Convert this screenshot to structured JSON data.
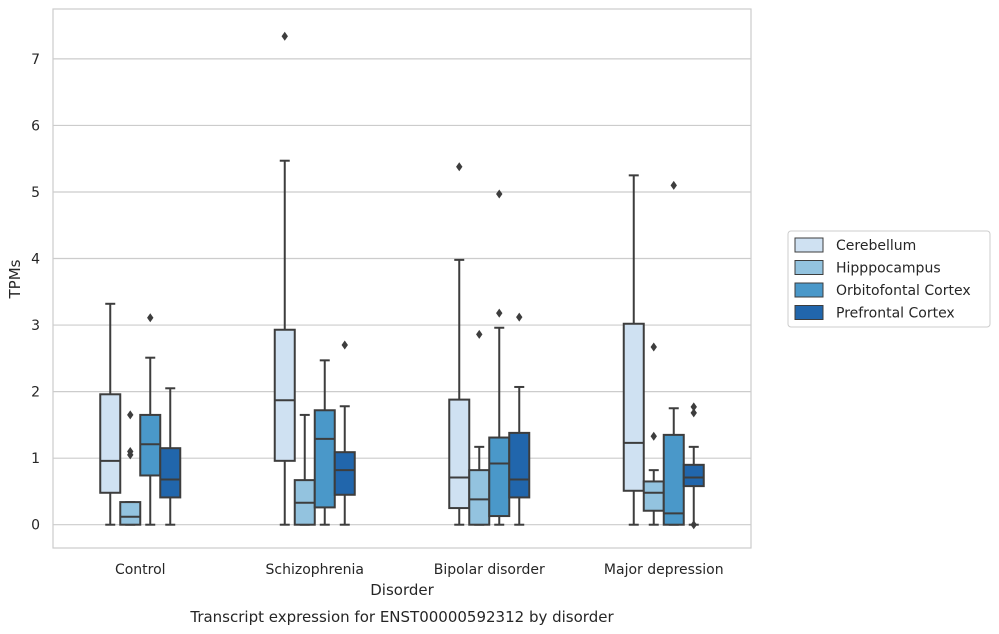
{
  "chart_data": {
    "type": "box",
    "title": "",
    "caption": "Transcript expression for ENST00000592312 by disorder",
    "xlabel": "Disorder",
    "ylabel": "TPMs",
    "ylim": [
      -0.35,
      7.75
    ],
    "yticks": [
      "0",
      "1",
      "2",
      "3",
      "4",
      "5",
      "6",
      "7"
    ],
    "categories": [
      "Control",
      "Schizophrenia",
      "Bipolar disorder",
      "Major depression"
    ],
    "grid": "horizontal",
    "legend_position": "right",
    "series": [
      {
        "name": "Cerebellum",
        "color": "#cfe1f2",
        "boxes": [
          {
            "whislo": 0,
            "q1": 0.48,
            "med": 0.96,
            "q3": 1.96,
            "whishi": 3.32,
            "fliers": []
          },
          {
            "whislo": 0,
            "q1": 0.96,
            "med": 1.87,
            "q3": 2.93,
            "whishi": 5.47,
            "fliers": [
              7.34
            ]
          },
          {
            "whislo": 0,
            "q1": 0.25,
            "med": 0.71,
            "q3": 1.88,
            "whishi": 3.98,
            "fliers": [
              5.38
            ]
          },
          {
            "whislo": 0,
            "q1": 0.51,
            "med": 1.23,
            "q3": 3.02,
            "whishi": 5.25,
            "fliers": []
          }
        ]
      },
      {
        "name": "Hipppocampus",
        "color": "#93c3df",
        "boxes": [
          {
            "whislo": 0,
            "q1": 0.0,
            "med": 0.12,
            "q3": 0.34,
            "whishi": 0.34,
            "fliers": [
              1.05,
              1.1,
              1.65
            ]
          },
          {
            "whislo": 0,
            "q1": 0.0,
            "med": 0.33,
            "q3": 0.67,
            "whishi": 1.65,
            "fliers": []
          },
          {
            "whislo": 0,
            "q1": 0.0,
            "med": 0.38,
            "q3": 0.82,
            "whishi": 1.17,
            "fliers": [
              2.86
            ]
          },
          {
            "whislo": 0,
            "q1": 0.21,
            "med": 0.48,
            "q3": 0.65,
            "whishi": 0.82,
            "fliers": [
              1.33,
              2.67
            ]
          }
        ]
      },
      {
        "name": "Orbitofontal Cortex",
        "color": "#4a98c9",
        "boxes": [
          {
            "whislo": 0,
            "q1": 0.74,
            "med": 1.21,
            "q3": 1.65,
            "whishi": 2.51,
            "fliers": [
              3.11
            ]
          },
          {
            "whislo": 0,
            "q1": 0.26,
            "med": 1.29,
            "q3": 1.72,
            "whishi": 2.47,
            "fliers": []
          },
          {
            "whislo": 0,
            "q1": 0.13,
            "med": 0.92,
            "q3": 1.31,
            "whishi": 2.96,
            "fliers": [
              3.18,
              4.97
            ]
          },
          {
            "whislo": 0,
            "q1": 0.0,
            "med": 0.17,
            "q3": 1.35,
            "whishi": 1.75,
            "fliers": [
              5.1
            ]
          }
        ]
      },
      {
        "name": "Prefrontal Cortex",
        "color": "#2166ac",
        "boxes": [
          {
            "whislo": 0,
            "q1": 0.41,
            "med": 0.68,
            "q3": 1.15,
            "whishi": 2.05,
            "fliers": []
          },
          {
            "whislo": 0,
            "q1": 0.45,
            "med": 0.82,
            "q3": 1.09,
            "whishi": 1.78,
            "fliers": [
              2.7
            ]
          },
          {
            "whislo": 0,
            "q1": 0.41,
            "med": 0.68,
            "q3": 1.38,
            "whishi": 2.07,
            "fliers": [
              3.12
            ]
          },
          {
            "whislo": 0,
            "q1": 0.58,
            "med": 0.71,
            "q3": 0.9,
            "whishi": 1.17,
            "fliers": [
              1.68,
              1.77,
              0.0
            ]
          }
        ]
      }
    ]
  }
}
